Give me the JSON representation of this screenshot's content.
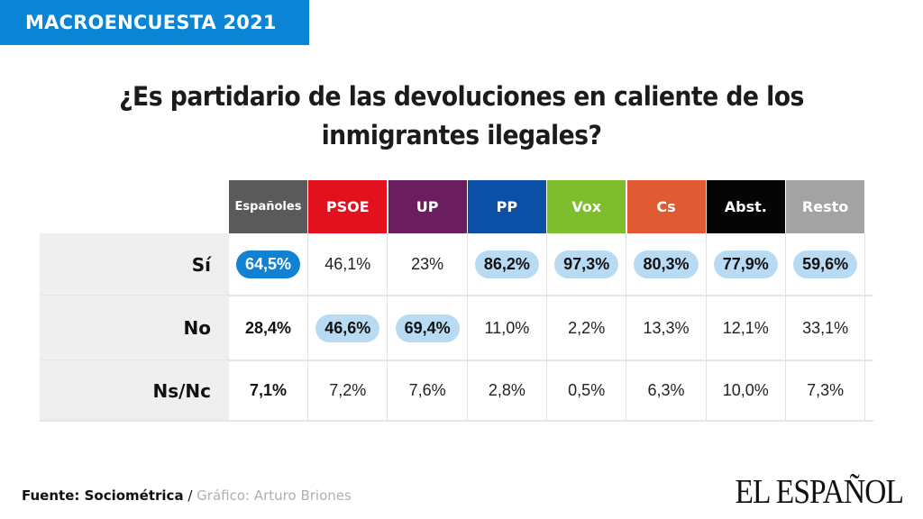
{
  "badge": "MACROENCUESTA 2021",
  "title_lines": [
    "¿Es partidario de las devoluciones en caliente de los",
    "inmigrantes ilegales?"
  ],
  "colors": {
    "badge": "#0a84d4",
    "highlight_light": "#b8dbf3",
    "highlight_dark": "#1181d3"
  },
  "chart_data": {
    "type": "table",
    "title": "¿Es partidario de las devoluciones en caliente de los inmigrantes ilegales?",
    "columns": [
      {
        "label": "Españoles",
        "color": "#5a5a5a"
      },
      {
        "label": "PSOE",
        "color": "#e3101e"
      },
      {
        "label": "UP",
        "color": "#6a1d5f"
      },
      {
        "label": "PP",
        "color": "#0b4fa6"
      },
      {
        "label": "Vox",
        "color": "#7ebd2b"
      },
      {
        "label": "Cs",
        "color": "#e05a34"
      },
      {
        "label": "Abst.",
        "color": "#050505"
      },
      {
        "label": "Resto",
        "color": "#a3a3a3"
      }
    ],
    "rows": [
      {
        "label": "Sí",
        "values": [
          "64,5%",
          "46,1%",
          "23%",
          "86,2%",
          "97,3%",
          "80,3%",
          "77,9%",
          "59,6%"
        ],
        "highlight": [
          "dark",
          "",
          "",
          "light",
          "light",
          "light",
          "light",
          "light"
        ]
      },
      {
        "label": "No",
        "values": [
          "28,4%",
          "46,6%",
          "69,4%",
          "11,0%",
          "2,2%",
          "13,3%",
          "12,1%",
          "33,1%"
        ],
        "highlight": [
          "",
          "light",
          "light",
          "",
          "",
          "",
          "",
          ""
        ]
      },
      {
        "label": "Ns/Nc",
        "values": [
          "7,1%",
          "7,2%",
          "7,6%",
          "2,8%",
          "0,5%",
          "6,3%",
          "10,0%",
          "7,3%"
        ],
        "highlight": [
          "",
          "",
          "",
          "",
          "",
          "",
          "",
          ""
        ]
      }
    ]
  },
  "footer": {
    "source": "Fuente: Sociométrica",
    "separator": " / ",
    "credit": "Gráfico: Arturo Briones"
  },
  "logo": "EL ESPAÑOL"
}
